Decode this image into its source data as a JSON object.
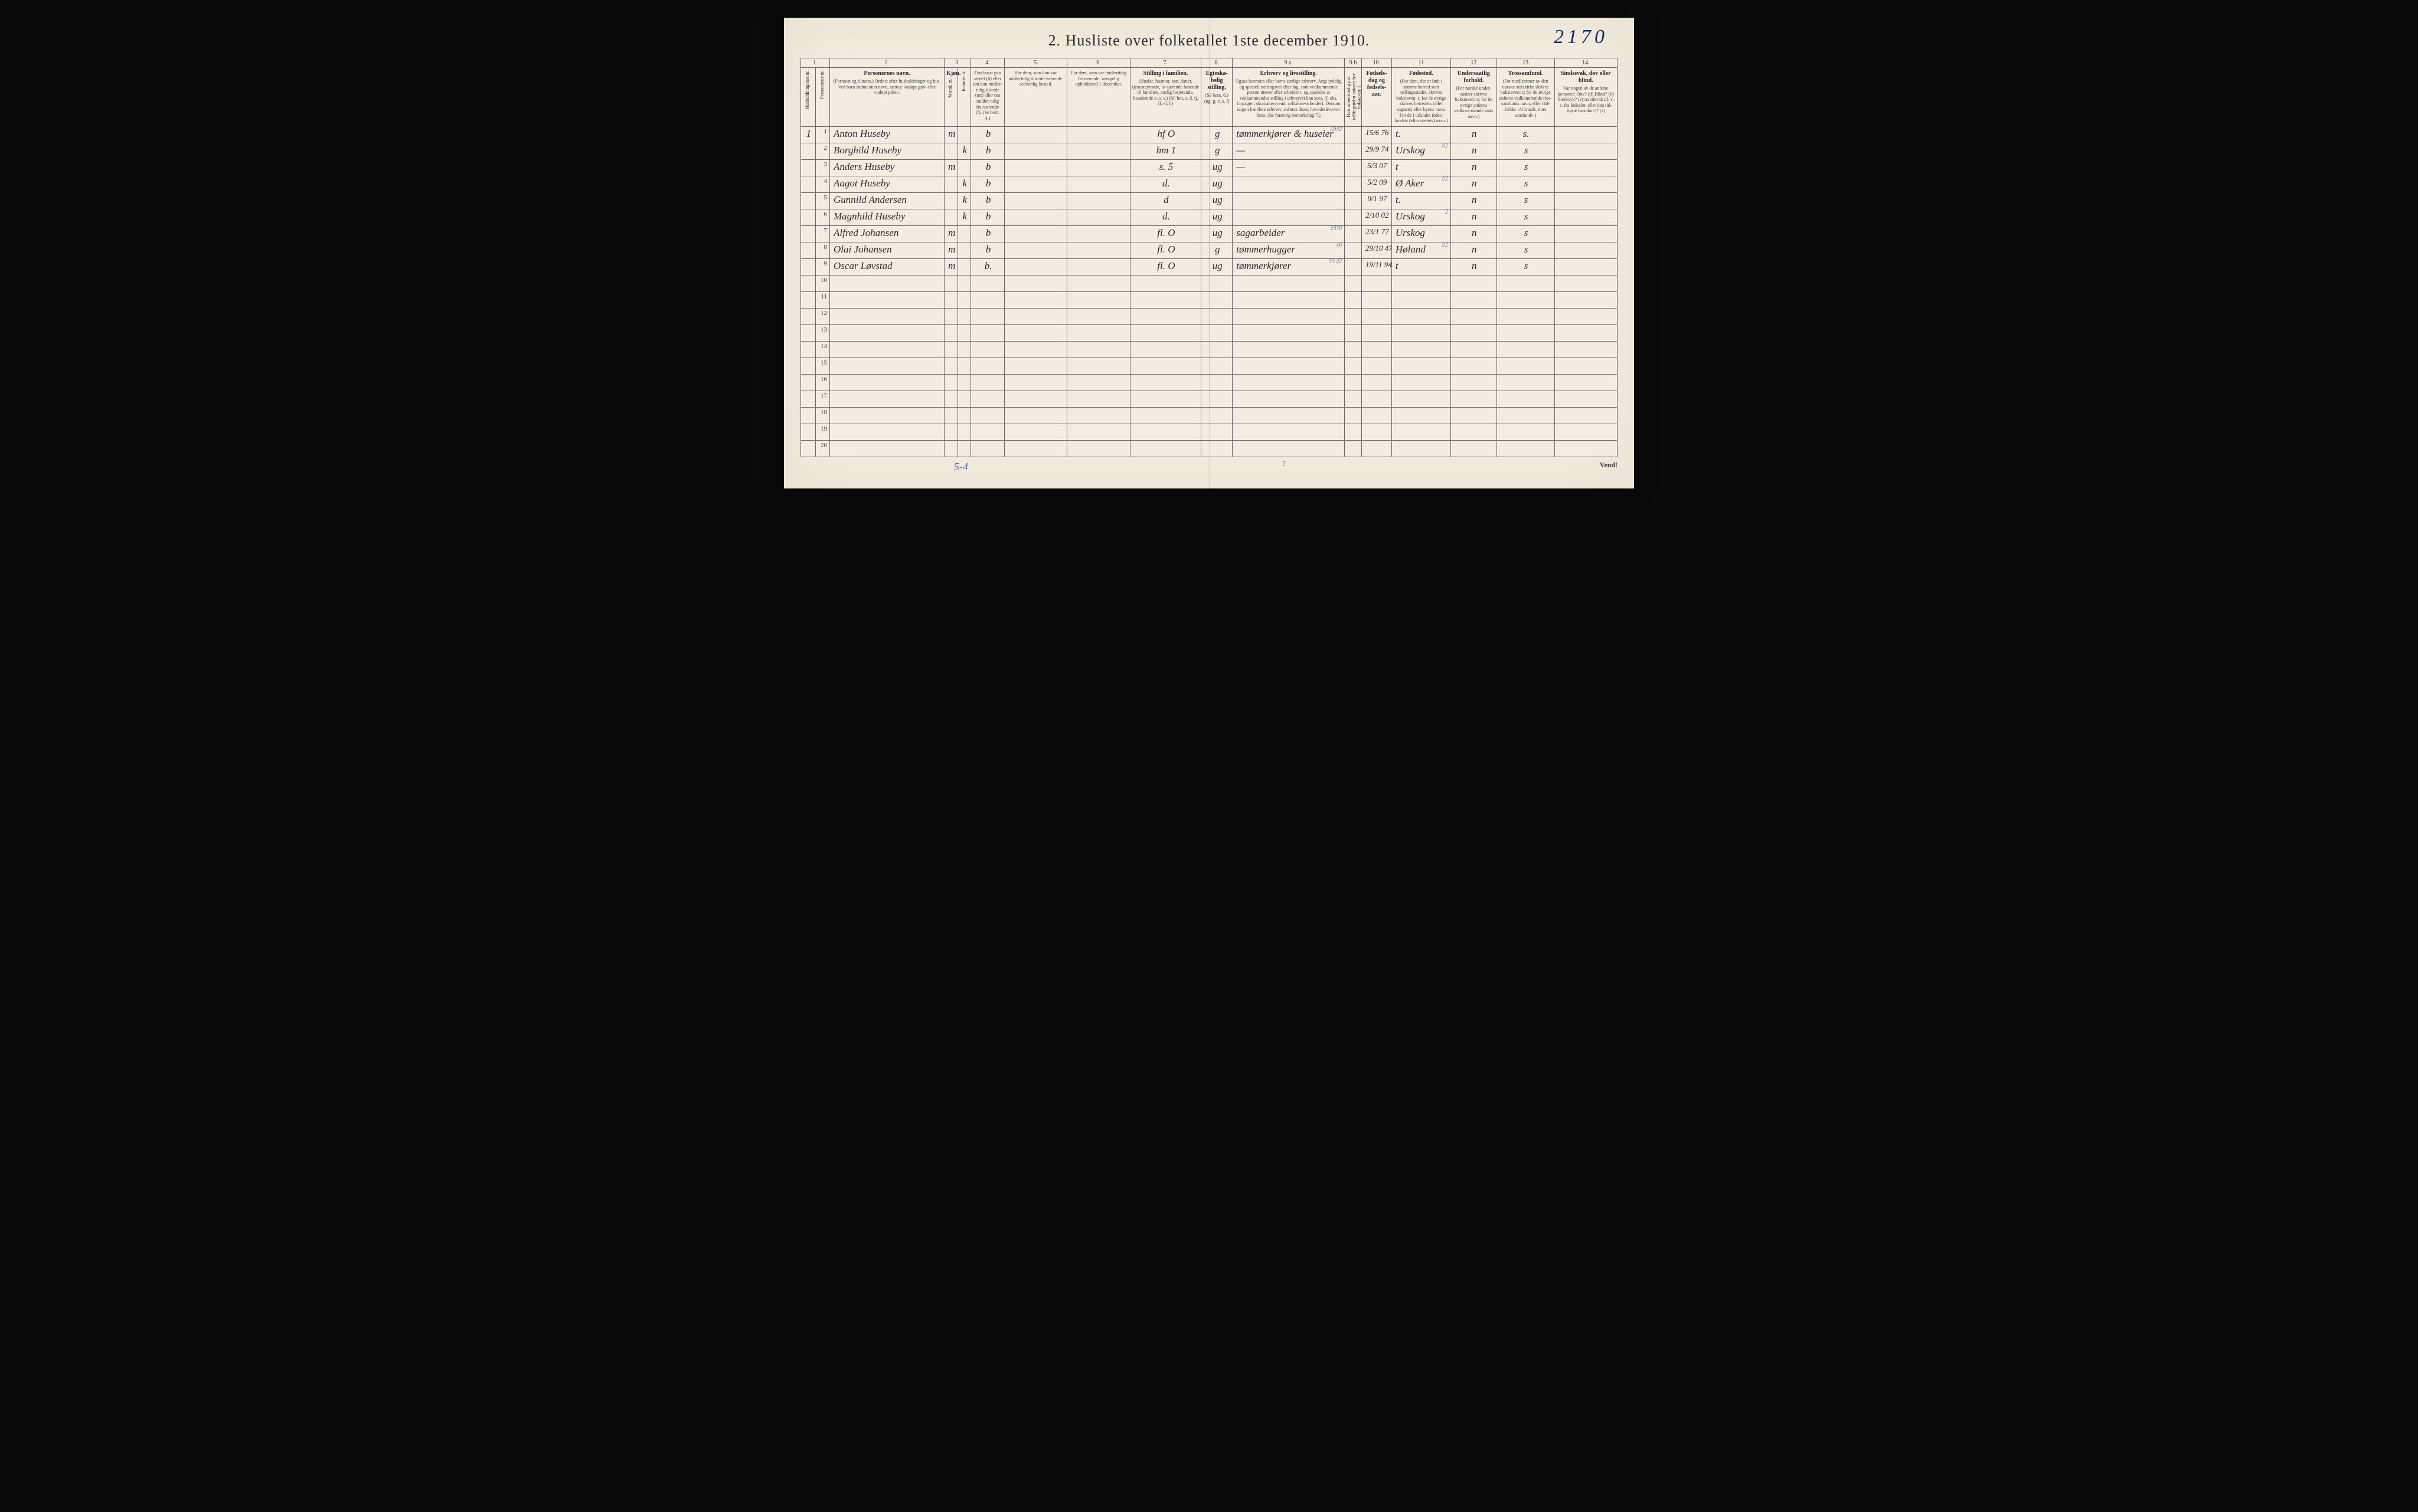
{
  "page_annotation": "2170",
  "title": "2.  Husliste over folketallet 1ste december 1910.",
  "footer": {
    "tally": "5-4",
    "page_num": "2",
    "vend": "Vend!"
  },
  "columns": {
    "nums": [
      "1.",
      "",
      "2.",
      "3.",
      "",
      "4.",
      "5.",
      "6.",
      "7.",
      "8.",
      "9 a.",
      "9 b",
      "10.",
      "11",
      "12",
      "13",
      "14."
    ],
    "labels": [
      {
        "title": "",
        "sub": "Husholdningenes nr."
      },
      {
        "title": "",
        "sub": "Personernes nr."
      },
      {
        "title": "Personernes navn.",
        "sub": "(Fornavn og tilnavn.) Ordnet efter husholdninger og hus. Ved barn endnu uten navn, sættes: «udøpt gut» eller «udøpt pike»."
      },
      {
        "title": "Kjøn.",
        "sub": "Mænd. m."
      },
      {
        "title": "",
        "sub": "Kvinder. k."
      },
      {
        "title": "",
        "sub": "Om bosat paa stedet (b) eller om kun midler-tidig tilstede (mt) eller om midler-tidig fra-værende (f). (Se bem. 4.)"
      },
      {
        "title": "",
        "sub": "For dem, som kun var midlertidig tilstede-værende: sedvanlig bosted."
      },
      {
        "title": "",
        "sub": "For dem, som var midlertidig fraværende: antagelig opholdssted 1 december."
      },
      {
        "title": "Stilling i familien.",
        "sub": "(Husfar, husmor, søn, datter, tjenestetyende, lo-sjerende hørende til familien, enslig losjerende, besøkende o. s. v.) (hf, hm, s, d, tj, fl, el, b)"
      },
      {
        "title": "Egteska-belig stilling.",
        "sub": "(Se bem. 6.) (ug, g, e, s, f)"
      },
      {
        "title": "Erhverv og livsstilling.",
        "sub": "Ogsaa husmors eller barns særlige erhverv. Angi tydelig og specielt næringsvei eller fag, som vedkommende person utøver eller arbeider i, og saaledes at vedkommendes stilling i erhvervet kan sees, (f. eks. forpagter, skomakersvend, cellulose-arbeider). Dersom nogen har flere erhverv, anføres disse, hovederhvervet først. (Se forøvrig bemerkning 7.)"
      },
      {
        "title": "",
        "sub": "Hvis arbeidsledig paa tællingstiden anføres her bokstaven: l."
      },
      {
        "title": "Fødsels-dag og fødsels-aar.",
        "sub": ""
      },
      {
        "title": "Fødested.",
        "sub": "(For dem, der er født i samme herred som tællingsstedet, skrives bokstaven: t; for de øvrige skrives herredets (eller sognets) eller byens navn. For de i utlandet fødte: landets (eller stedets) navn.)"
      },
      {
        "title": "Undersaatlig forhold.",
        "sub": "(For norske under-saatter skrives bokstaven: n; for de øvrige anføres vedkom-mende stats navn.)"
      },
      {
        "title": "Trossamfund.",
        "sub": "(For medlemmer av den norske statskirke skrives bokstaven: s; for de øvrige anføres vedkommende tros-samfunds navn, eller i til-fælde: «Uttraadt, intet samfund».)"
      },
      {
        "title": "Sindssvak, døv eller blind.",
        "sub": "Var nogen av de anførte personer: Døv? (d) Blind? (b) Sind-syk? (s) Aandsvak (d. v. s. fra fødselen eller den tid-ligste barndom)? (a)"
      }
    ]
  },
  "rows": [
    {
      "hh": "1",
      "pn": "1",
      "name": "Anton Huseby",
      "m": "m",
      "k": "",
      "res": "b",
      "c5": "",
      "c6": "",
      "fam": "hf   O",
      "eg": "g",
      "occ": "tømmerkjører & huseier",
      "occ_sup": "5942",
      "c9b": "",
      "dob": "15/6 76",
      "birthplace": "t.",
      "bp_sup": "",
      "nat": "n",
      "rel": "s.",
      "c14": ""
    },
    {
      "hh": "",
      "pn": "2",
      "name": "Borghild Huseby",
      "m": "",
      "k": "k",
      "res": "b",
      "c5": "",
      "c6": "",
      "fam": "hm   1",
      "eg": "g",
      "occ": "—",
      "occ_sup": "",
      "c9b": "",
      "dob": "29/9 74",
      "birthplace": "Urskog",
      "bp_sup": "02",
      "nat": "n",
      "rel": "s",
      "c14": ""
    },
    {
      "hh": "",
      "pn": "3",
      "name": "Anders Huseby",
      "m": "m",
      "k": "",
      "res": "b",
      "c5": "",
      "c6": "",
      "fam": "s.   5",
      "eg": "ug",
      "occ": "—",
      "occ_sup": "",
      "c9b": "",
      "dob": "5/3 07",
      "birthplace": "t",
      "bp_sup": "",
      "nat": "n",
      "rel": "s",
      "c14": ""
    },
    {
      "hh": "",
      "pn": "4",
      "name": "Aagot Huseby",
      "m": "",
      "k": "k",
      "res": "b",
      "c5": "",
      "c6": "",
      "fam": "d.",
      "eg": "ug",
      "occ": "",
      "occ_sup": "",
      "c9b": "",
      "dob": "5/2 09",
      "birthplace": "Ø Aker",
      "bp_sup": "02",
      "nat": "n",
      "rel": "s",
      "c14": ""
    },
    {
      "hh": "",
      "pn": "5",
      "name": "Gunnild Andersen",
      "m": "",
      "k": "k",
      "res": "b",
      "c5": "",
      "c6": "",
      "fam": "d",
      "eg": "ug",
      "occ": "",
      "occ_sup": "",
      "c9b": "",
      "dob": "9/1 97",
      "birthplace": "t.",
      "bp_sup": "",
      "nat": "n",
      "rel": "s",
      "c14": ""
    },
    {
      "hh": "",
      "pn": "6",
      "name": "Magnhild Huseby",
      "m": "",
      "k": "k",
      "res": "b",
      "c5": "",
      "c6": "",
      "fam": "d.",
      "eg": "ug",
      "occ": "",
      "occ_sup": "",
      "c9b": "",
      "dob": "2/10 02",
      "birthplace": "Urskog",
      "bp_sup": "2",
      "nat": "n",
      "rel": "s",
      "c14": ""
    },
    {
      "hh": "",
      "pn": "7",
      "name": "Alfred Johansen",
      "m": "m",
      "k": "",
      "res": "b",
      "c5": "",
      "c6": "",
      "fam": "fl.  O",
      "eg": "ug",
      "occ": "sagarbeider",
      "occ_sup": "2970",
      "c9b": "",
      "dob": "23/1 77",
      "birthplace": "Urskog",
      "bp_sup": "",
      "nat": "n",
      "rel": "s",
      "c14": ""
    },
    {
      "hh": "",
      "pn": "8",
      "name": "Olai Johansen",
      "m": "m",
      "k": "",
      "res": "b",
      "c5": "",
      "c6": "",
      "fam": "fl.  O",
      "eg": "g",
      "occ": "tømmerhugger",
      "occ_sup": "x6",
      "c9b": "",
      "dob": "29/10 47",
      "birthplace": "Høland",
      "bp_sup": "02",
      "nat": "n",
      "rel": "s",
      "c14": ""
    },
    {
      "hh": "",
      "pn": "9",
      "name": "Oscar Løvstad",
      "m": "m",
      "k": "",
      "res": "b.",
      "c5": "",
      "c6": "",
      "fam": "fl.  O",
      "eg": "ug",
      "occ": "tømmerkjører",
      "occ_sup": "59 42",
      "c9b": "",
      "dob": "19/11 94",
      "birthplace": "t",
      "bp_sup": "",
      "nat": "n",
      "rel": "s",
      "c14": ""
    }
  ],
  "empty_rows": [
    "10",
    "11",
    "12",
    "13",
    "14",
    "15",
    "16",
    "17",
    "18",
    "19",
    "20"
  ]
}
